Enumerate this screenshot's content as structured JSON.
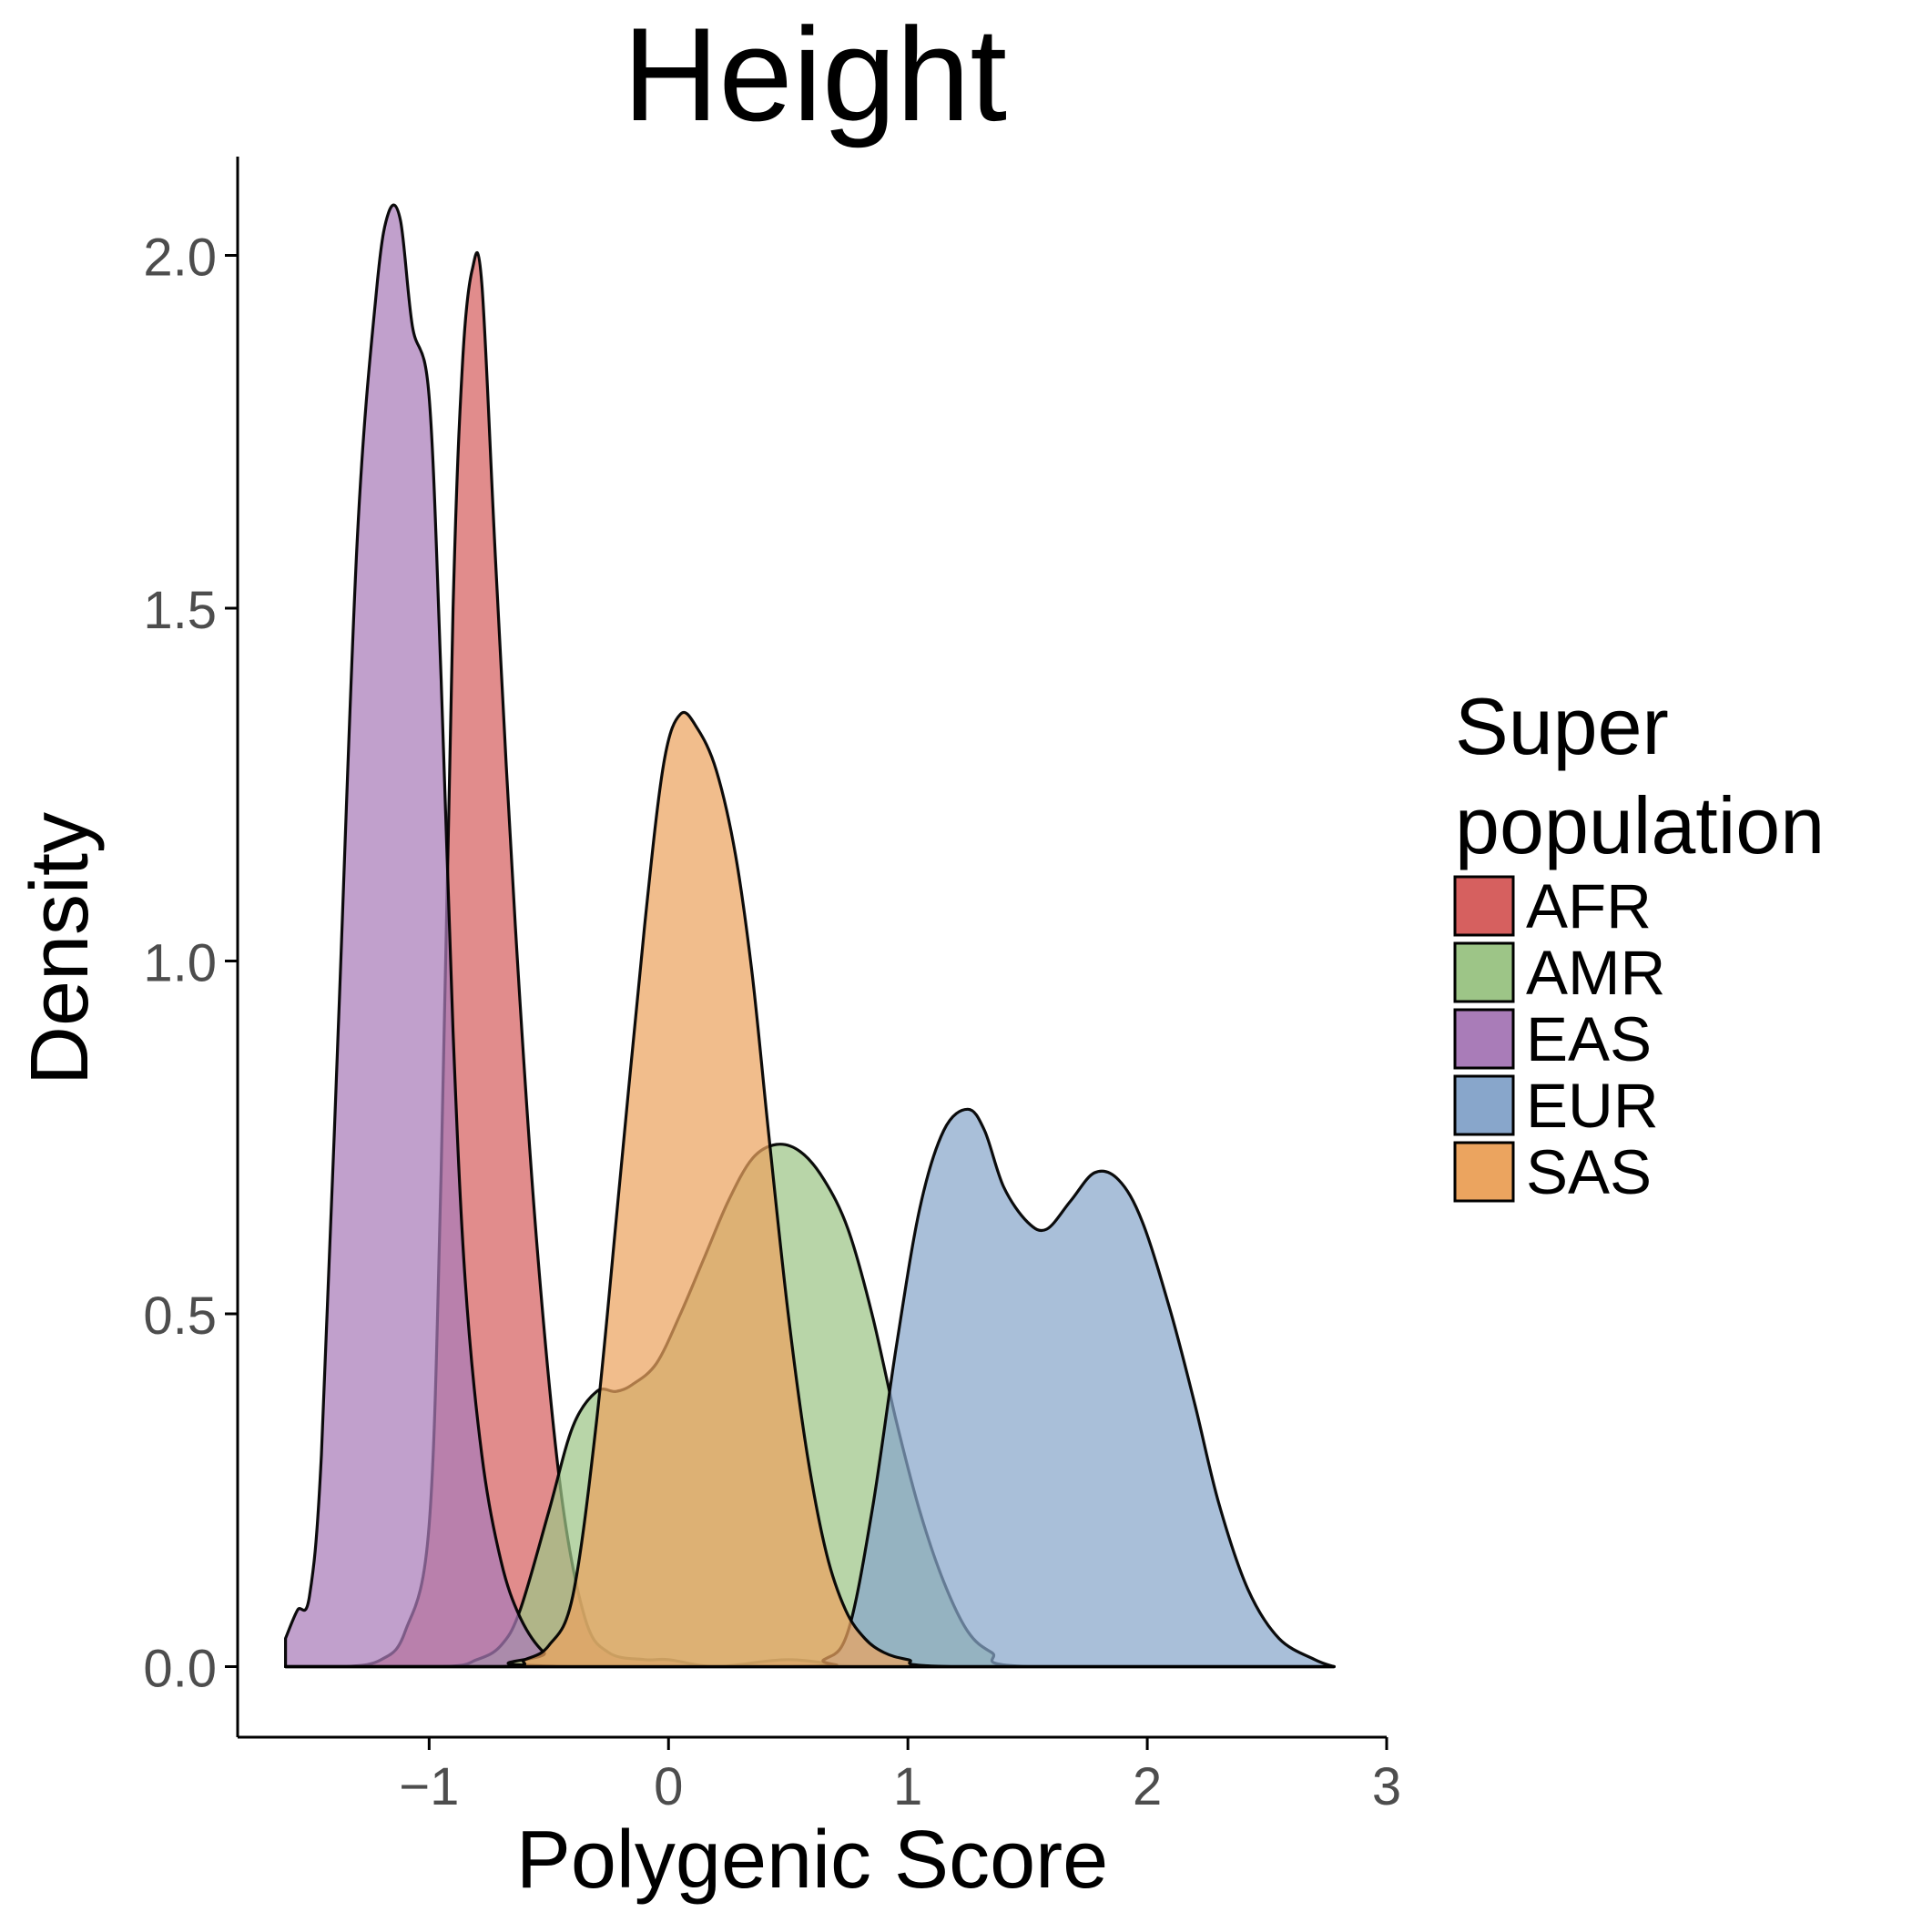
{
  "chart_data": {
    "type": "area",
    "title": "Height",
    "xlabel": "Polygenic Score",
    "ylabel": "Density",
    "xlim": [
      -1.8,
      3.0
    ],
    "ylim": [
      -0.1,
      2.14
    ],
    "x_ticks": [
      -1,
      0,
      1,
      2,
      3
    ],
    "x_tick_labels": [
      "−1",
      "0",
      "1",
      "2",
      "3"
    ],
    "y_ticks": [
      0.0,
      0.5,
      1.0,
      1.5,
      2.0
    ],
    "y_tick_labels": [
      "0.0",
      "0.5",
      "1.0",
      "1.5",
      "2.0"
    ],
    "grid": false,
    "legend": {
      "title_lines": [
        "Super",
        "population"
      ],
      "placement": "right"
    },
    "series": [
      {
        "name": "AFR",
        "color": "#d6605f",
        "points": [
          [
            -1.6,
            0
          ],
          [
            -1.35,
            0
          ],
          [
            -1.2,
            0.01
          ],
          [
            -1.1,
            0.05
          ],
          [
            -1.0,
            0.2
          ],
          [
            -0.95,
            0.7
          ],
          [
            -0.9,
            1.5
          ],
          [
            -0.86,
            1.85
          ],
          [
            -0.82,
            1.98
          ],
          [
            -0.78,
            1.96
          ],
          [
            -0.72,
            1.55
          ],
          [
            -0.64,
            1.05
          ],
          [
            -0.55,
            0.6
          ],
          [
            -0.45,
            0.25
          ],
          [
            -0.35,
            0.07
          ],
          [
            -0.25,
            0.02
          ],
          [
            -0.1,
            0.01
          ],
          [
            0,
            0.01
          ],
          [
            0.2,
            0
          ],
          [
            0.5,
            0.01
          ],
          [
            0.8,
            0
          ],
          [
            1.2,
            0
          ],
          [
            2.78,
            0
          ]
        ]
      },
      {
        "name": "AMR",
        "color": "#9dc587",
        "points": [
          [
            -1.6,
            0
          ],
          [
            -0.95,
            0
          ],
          [
            -0.8,
            0.01
          ],
          [
            -0.7,
            0.03
          ],
          [
            -0.62,
            0.08
          ],
          [
            -0.5,
            0.22
          ],
          [
            -0.4,
            0.34
          ],
          [
            -0.3,
            0.39
          ],
          [
            -0.22,
            0.39
          ],
          [
            -0.15,
            0.4
          ],
          [
            -0.05,
            0.43
          ],
          [
            0.05,
            0.5
          ],
          [
            0.15,
            0.58
          ],
          [
            0.25,
            0.66
          ],
          [
            0.35,
            0.72
          ],
          [
            0.45,
            0.74
          ],
          [
            0.55,
            0.73
          ],
          [
            0.65,
            0.69
          ],
          [
            0.75,
            0.62
          ],
          [
            0.85,
            0.5
          ],
          [
            0.95,
            0.35
          ],
          [
            1.05,
            0.22
          ],
          [
            1.15,
            0.12
          ],
          [
            1.25,
            0.05
          ],
          [
            1.35,
            0.02
          ],
          [
            1.5,
            0
          ],
          [
            2.78,
            0
          ]
        ]
      },
      {
        "name": "EAS",
        "color": "#a97cb8",
        "points": [
          [
            -1.6,
            0.04
          ],
          [
            -1.55,
            0.08
          ],
          [
            -1.5,
            0.1
          ],
          [
            -1.45,
            0.3
          ],
          [
            -1.38,
            0.9
          ],
          [
            -1.3,
            1.6
          ],
          [
            -1.22,
            1.95
          ],
          [
            -1.17,
            2.06
          ],
          [
            -1.12,
            2.05
          ],
          [
            -1.07,
            1.9
          ],
          [
            -1.0,
            1.8
          ],
          [
            -0.95,
            1.4
          ],
          [
            -0.9,
            0.9
          ],
          [
            -0.85,
            0.55
          ],
          [
            -0.78,
            0.3
          ],
          [
            -0.7,
            0.15
          ],
          [
            -0.62,
            0.07
          ],
          [
            -0.52,
            0.02
          ],
          [
            -0.4,
            0
          ],
          [
            2.78,
            0
          ]
        ]
      },
      {
        "name": "EUR",
        "color": "#88a6cb",
        "points": [
          [
            -1.6,
            0
          ],
          [
            0.5,
            0
          ],
          [
            0.65,
            0.01
          ],
          [
            0.75,
            0.05
          ],
          [
            0.85,
            0.22
          ],
          [
            0.95,
            0.45
          ],
          [
            1.05,
            0.65
          ],
          [
            1.15,
            0.76
          ],
          [
            1.25,
            0.79
          ],
          [
            1.32,
            0.76
          ],
          [
            1.4,
            0.68
          ],
          [
            1.5,
            0.63
          ],
          [
            1.58,
            0.62
          ],
          [
            1.68,
            0.66
          ],
          [
            1.78,
            0.7
          ],
          [
            1.88,
            0.69
          ],
          [
            1.98,
            0.63
          ],
          [
            2.1,
            0.5
          ],
          [
            2.2,
            0.37
          ],
          [
            2.3,
            0.23
          ],
          [
            2.42,
            0.11
          ],
          [
            2.55,
            0.04
          ],
          [
            2.7,
            0.01
          ],
          [
            2.78,
            0
          ]
        ]
      },
      {
        "name": "SAS",
        "color": "#eba45f",
        "points": [
          [
            -1.6,
            0
          ],
          [
            -0.7,
            0
          ],
          [
            -0.6,
            0.01
          ],
          [
            -0.5,
            0.03
          ],
          [
            -0.4,
            0.1
          ],
          [
            -0.3,
            0.35
          ],
          [
            -0.2,
            0.7
          ],
          [
            -0.1,
            1.05
          ],
          [
            -0.02,
            1.28
          ],
          [
            0.05,
            1.35
          ],
          [
            0.12,
            1.33
          ],
          [
            0.2,
            1.27
          ],
          [
            0.28,
            1.15
          ],
          [
            0.35,
            0.98
          ],
          [
            0.42,
            0.75
          ],
          [
            0.5,
            0.5
          ],
          [
            0.58,
            0.3
          ],
          [
            0.66,
            0.16
          ],
          [
            0.74,
            0.08
          ],
          [
            0.82,
            0.04
          ],
          [
            0.9,
            0.02
          ],
          [
            1.0,
            0.01
          ],
          [
            1.2,
            0
          ],
          [
            2.78,
            0
          ]
        ]
      }
    ]
  }
}
